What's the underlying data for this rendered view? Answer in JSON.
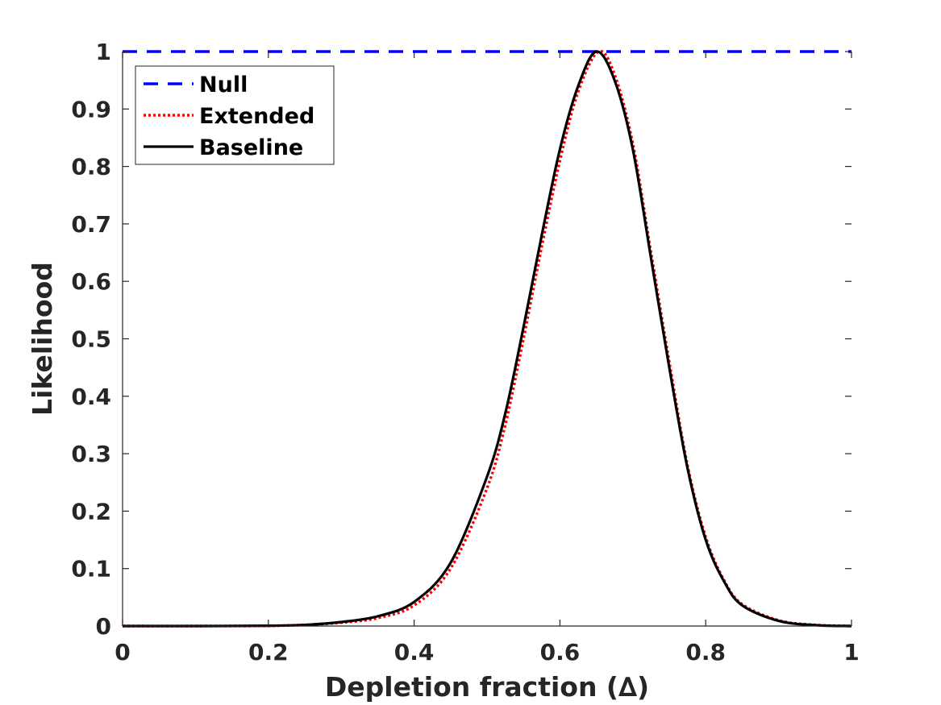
{
  "chart_data": {
    "type": "line",
    "title": "",
    "xlabel": "Depletion fraction (∆)",
    "ylabel": "Likelihood",
    "xlim": [
      0,
      1
    ],
    "ylim": [
      0,
      1
    ],
    "x_ticks": [
      0,
      0.2,
      0.4,
      0.6,
      0.8,
      1
    ],
    "y_ticks": [
      0,
      0.1,
      0.2,
      0.3,
      0.4,
      0.5,
      0.6,
      0.7,
      0.8,
      0.9,
      1
    ],
    "grid": false,
    "legend_placement": "top-left",
    "series": [
      {
        "name": "Null",
        "color": "#0000ff",
        "style": "dashed",
        "x": [
          0,
          0.1,
          0.2,
          0.3,
          0.4,
          0.5,
          0.6,
          0.7,
          0.8,
          0.9,
          1.0
        ],
        "y": [
          1,
          1,
          1,
          1,
          1,
          1,
          1,
          1,
          1,
          1,
          1
        ]
      },
      {
        "name": "Extended",
        "color": "#ff0000",
        "style": "dotted",
        "x": [
          0,
          0.1,
          0.2,
          0.25,
          0.3,
          0.35,
          0.4,
          0.45,
          0.5,
          0.525,
          0.55,
          0.575,
          0.6,
          0.625,
          0.653,
          0.675,
          0.7,
          0.725,
          0.75,
          0.775,
          0.8,
          0.825,
          0.85,
          0.9,
          0.95,
          1.0
        ],
        "y": [
          0,
          0,
          0.0004,
          0.002,
          0.006,
          0.014,
          0.036,
          0.1,
          0.24,
          0.35,
          0.5,
          0.66,
          0.81,
          0.93,
          1.0,
          0.96,
          0.84,
          0.65,
          0.46,
          0.28,
          0.155,
          0.08,
          0.038,
          0.01,
          0.002,
          0.0
        ]
      },
      {
        "name": "Baseline",
        "color": "#000000",
        "style": "solid",
        "x": [
          0,
          0.1,
          0.2,
          0.25,
          0.3,
          0.35,
          0.4,
          0.45,
          0.5,
          0.525,
          0.55,
          0.575,
          0.6,
          0.625,
          0.65,
          0.675,
          0.7,
          0.725,
          0.75,
          0.775,
          0.8,
          0.825,
          0.85,
          0.9,
          0.95,
          1.0
        ],
        "y": [
          0,
          0,
          0.0005,
          0.002,
          0.007,
          0.017,
          0.042,
          0.11,
          0.26,
          0.37,
          0.52,
          0.68,
          0.83,
          0.94,
          1.0,
          0.95,
          0.83,
          0.64,
          0.45,
          0.275,
          0.15,
          0.078,
          0.036,
          0.009,
          0.0015,
          0.0
        ]
      }
    ]
  }
}
